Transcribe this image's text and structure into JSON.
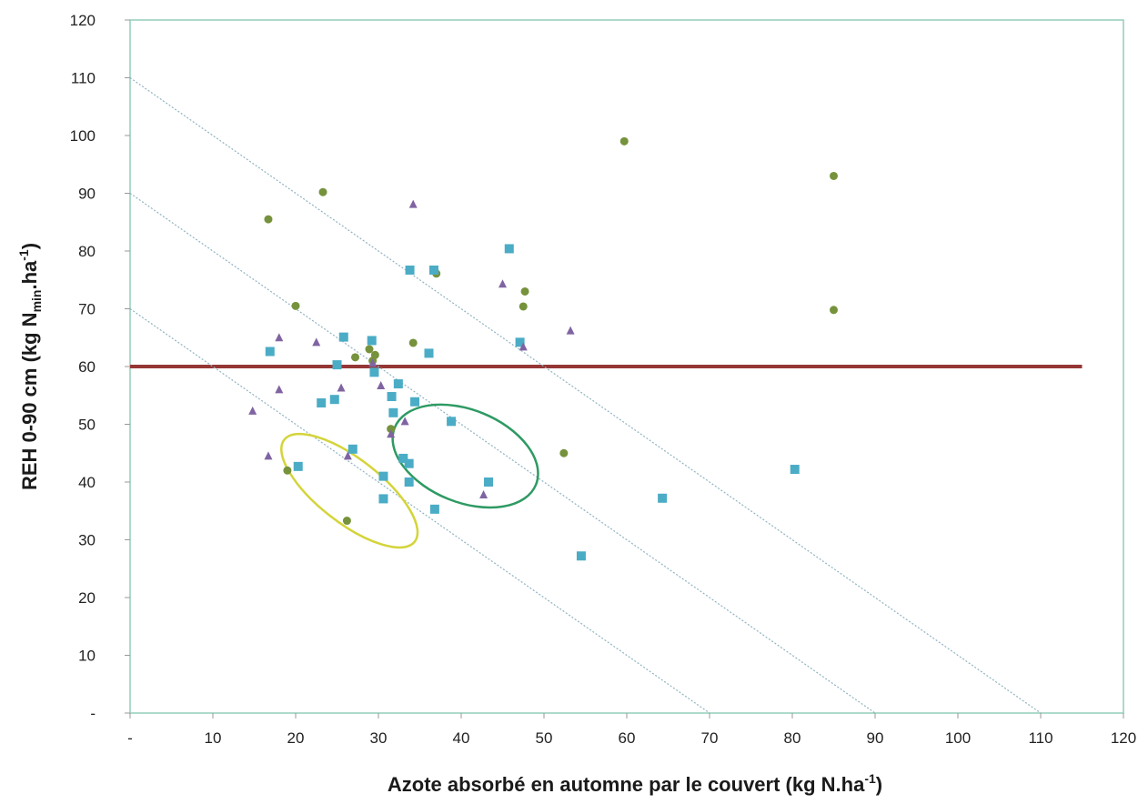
{
  "chart_data": {
    "type": "scatter",
    "title": "",
    "xlabel": {
      "text": "Azote absorbé en automne par le couvert (kg N.ha",
      "sup": "-1",
      "close": ")"
    },
    "ylabel": {
      "pre": "REH 0-90 cm (kg N",
      "sub": "min",
      "mid": ".ha",
      "sup": "-1",
      "close": ")"
    },
    "xlim": [
      0,
      120
    ],
    "ylim": [
      0,
      120
    ],
    "x_ticks": [
      {
        "v": 0,
        "label": "-"
      },
      {
        "v": 10,
        "label": "10"
      },
      {
        "v": 20,
        "label": "20"
      },
      {
        "v": 30,
        "label": "30"
      },
      {
        "v": 40,
        "label": "40"
      },
      {
        "v": 50,
        "label": "50"
      },
      {
        "v": 60,
        "label": "60"
      },
      {
        "v": 70,
        "label": "70"
      },
      {
        "v": 80,
        "label": "80"
      },
      {
        "v": 90,
        "label": "90"
      },
      {
        "v": 100,
        "label": "100"
      },
      {
        "v": 110,
        "label": "110"
      },
      {
        "v": 120,
        "label": "120"
      }
    ],
    "y_ticks": [
      {
        "v": 0,
        "label": "-"
      },
      {
        "v": 10,
        "label": "10"
      },
      {
        "v": 20,
        "label": "20"
      },
      {
        "v": 30,
        "label": "30"
      },
      {
        "v": 40,
        "label": "40"
      },
      {
        "v": 50,
        "label": "50"
      },
      {
        "v": 60,
        "label": "60"
      },
      {
        "v": 70,
        "label": "70"
      },
      {
        "v": 80,
        "label": "80"
      },
      {
        "v": 90,
        "label": "90"
      },
      {
        "v": 100,
        "label": "100"
      },
      {
        "v": 110,
        "label": "110"
      },
      {
        "v": 120,
        "label": "120"
      }
    ],
    "grid": false,
    "series": [
      {
        "marker": "circle",
        "color": "#76923c",
        "points": [
          [
            16.7,
            85.5
          ],
          [
            23.3,
            90.2
          ],
          [
            20.0,
            70.5
          ],
          [
            19.0,
            42.0
          ],
          [
            26.2,
            33.3
          ],
          [
            27.2,
            61.6
          ],
          [
            28.9,
            63.0
          ],
          [
            29.3,
            61.0
          ],
          [
            29.6,
            62.0
          ],
          [
            31.5,
            49.2
          ],
          [
            34.2,
            64.1
          ],
          [
            37.0,
            76.1
          ],
          [
            47.5,
            70.4
          ],
          [
            47.7,
            73.0
          ],
          [
            52.4,
            45.0
          ],
          [
            59.7,
            99.0
          ],
          [
            85.0,
            93.0
          ],
          [
            85.0,
            69.8
          ]
        ]
      },
      {
        "marker": "square",
        "color": "#4bacc6",
        "points": [
          [
            16.9,
            62.6
          ],
          [
            20.3,
            42.7
          ],
          [
            23.1,
            53.7
          ],
          [
            24.7,
            54.3
          ],
          [
            25.0,
            60.3
          ],
          [
            25.8,
            65.1
          ],
          [
            26.9,
            45.7
          ],
          [
            29.2,
            64.5
          ],
          [
            29.5,
            59.0
          ],
          [
            30.6,
            41.0
          ],
          [
            30.6,
            37.1
          ],
          [
            31.6,
            54.8
          ],
          [
            31.8,
            52.0
          ],
          [
            32.4,
            57.0
          ],
          [
            33.0,
            44.1
          ],
          [
            33.7,
            40.0
          ],
          [
            33.7,
            43.2
          ],
          [
            33.8,
            76.7
          ],
          [
            34.4,
            53.9
          ],
          [
            36.1,
            62.3
          ],
          [
            36.7,
            76.7
          ],
          [
            36.8,
            35.3
          ],
          [
            38.8,
            50.5
          ],
          [
            43.3,
            40.0
          ],
          [
            45.8,
            80.4
          ],
          [
            47.1,
            64.2
          ],
          [
            54.5,
            27.2
          ],
          [
            64.3,
            37.2
          ],
          [
            80.3,
            42.2
          ]
        ]
      },
      {
        "marker": "triangle",
        "color": "#8064a2",
        "points": [
          [
            14.8,
            52.3
          ],
          [
            16.7,
            44.5
          ],
          [
            18.0,
            65.0
          ],
          [
            18.0,
            56.0
          ],
          [
            22.5,
            64.2
          ],
          [
            25.5,
            56.3
          ],
          [
            26.3,
            44.5
          ],
          [
            29.3,
            60.6
          ],
          [
            30.3,
            56.7
          ],
          [
            31.5,
            48.3
          ],
          [
            33.2,
            50.5
          ],
          [
            34.2,
            88.1
          ],
          [
            42.7,
            37.8
          ],
          [
            45.0,
            74.3
          ],
          [
            47.5,
            63.4
          ],
          [
            53.2,
            66.2
          ]
        ]
      }
    ],
    "reference_lines": [
      {
        "type": "horizontal",
        "y": 60,
        "color": "#953735"
      },
      {
        "type": "diagonal",
        "from": [
          0,
          70
        ],
        "to": [
          70,
          0
        ],
        "color": "#8fb3c1"
      },
      {
        "type": "diagonal",
        "from": [
          0,
          90
        ],
        "to": [
          90,
          0
        ],
        "color": "#8fb3c1"
      },
      {
        "type": "diagonal",
        "from": [
          0,
          110
        ],
        "to": [
          110,
          0
        ],
        "color": "#8fb3c1"
      }
    ],
    "annotations": [
      {
        "shape": "ellipse",
        "center": [
          26.5,
          38.5
        ],
        "radii": [
          10.0,
          5.5
        ],
        "rotation_deg": 38,
        "color": "#d4d43a"
      },
      {
        "shape": "ellipse",
        "center": [
          40.5,
          44.5
        ],
        "radii": [
          9.2,
          8.0
        ],
        "rotation_deg": 22,
        "color": "#2e9a63"
      }
    ],
    "frame_color": "#93cdb8"
  }
}
